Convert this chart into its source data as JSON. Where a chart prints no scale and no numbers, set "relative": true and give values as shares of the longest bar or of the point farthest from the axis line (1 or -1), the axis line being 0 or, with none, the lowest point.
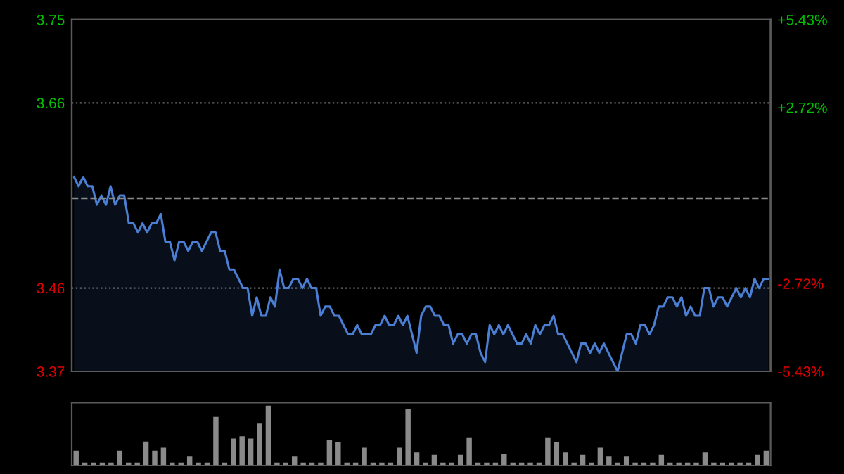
{
  "chart_data": [
    {
      "type": "area",
      "color": "#4a7fd4",
      "ylim": [
        3.37,
        3.75
      ],
      "yticks": [
        3.37,
        3.46,
        3.66,
        3.75
      ],
      "y2lim": [
        -5.43,
        5.43
      ],
      "y2ticks": [
        {
          "value": -5.43,
          "label": "-5.43%"
        },
        {
          "value": -2.72,
          "label": "-2.72%"
        },
        {
          "value": 2.72,
          "label": "+2.72%"
        },
        {
          "value": 5.43,
          "label": "+5.43%"
        }
      ],
      "grid": "y",
      "ref_lines": [
        {
          "axis": "y",
          "value": 3.557,
          "label": null,
          "line_style": "dashed"
        }
      ],
      "categories": [
        null,
        null,
        null,
        null,
        null,
        null,
        null,
        null,
        null,
        null,
        null,
        null,
        null,
        null,
        null,
        null,
        null,
        null,
        null,
        null,
        null,
        null,
        null,
        null,
        null,
        null,
        null,
        null,
        null,
        null,
        null,
        null,
        null,
        null,
        null,
        null,
        null,
        null,
        null,
        null,
        null,
        null,
        null,
        null,
        null,
        null,
        null,
        null,
        null,
        null,
        null,
        null,
        null,
        null,
        null,
        null,
        null,
        null,
        null,
        null,
        null,
        null,
        null,
        null,
        null,
        null,
        null,
        null,
        null,
        null,
        null,
        null,
        null,
        null,
        null,
        null,
        null,
        null,
        null,
        null,
        null,
        null,
        null,
        null,
        null,
        null,
        null,
        null,
        null,
        null,
        null,
        null,
        null,
        null,
        null,
        null,
        null,
        null,
        null,
        null,
        null,
        null,
        null,
        null,
        null,
        null,
        null,
        null,
        null,
        null,
        null,
        null,
        null,
        null,
        null,
        null,
        null,
        null,
        null,
        null,
        null,
        null,
        null,
        null,
        null,
        null,
        null,
        null,
        null,
        null,
        null,
        null,
        null,
        null,
        null,
        null,
        null,
        null,
        null,
        null,
        null,
        null,
        null,
        null,
        null,
        null,
        null,
        null,
        null,
        null,
        null,
        null,
        null
      ],
      "values": [
        3.58,
        3.57,
        3.58,
        3.57,
        3.57,
        3.55,
        3.56,
        3.55,
        3.57,
        3.55,
        3.56,
        3.56,
        3.53,
        3.53,
        3.52,
        3.53,
        3.52,
        3.53,
        3.53,
        3.54,
        3.51,
        3.51,
        3.49,
        3.51,
        3.51,
        3.5,
        3.51,
        3.51,
        3.5,
        3.51,
        3.52,
        3.52,
        3.5,
        3.5,
        3.48,
        3.48,
        3.47,
        3.46,
        3.46,
        3.43,
        3.45,
        3.43,
        3.43,
        3.45,
        3.44,
        3.48,
        3.46,
        3.46,
        3.47,
        3.47,
        3.46,
        3.47,
        3.46,
        3.46,
        3.43,
        3.44,
        3.44,
        3.43,
        3.43,
        3.42,
        3.41,
        3.41,
        3.42,
        3.41,
        3.41,
        3.41,
        3.42,
        3.42,
        3.43,
        3.42,
        3.42,
        3.43,
        3.42,
        3.43,
        3.41,
        3.39,
        3.43,
        3.44,
        3.44,
        3.43,
        3.43,
        3.42,
        3.42,
        3.4,
        3.41,
        3.41,
        3.4,
        3.41,
        3.41,
        3.39,
        3.38,
        3.42,
        3.41,
        3.42,
        3.41,
        3.42,
        3.41,
        3.4,
        3.4,
        3.41,
        3.4,
        3.42,
        3.41,
        3.42,
        3.42,
        3.43,
        3.41,
        3.41,
        3.4,
        3.39,
        3.38,
        3.4,
        3.4,
        3.39,
        3.4,
        3.39,
        3.4,
        3.39,
        3.38,
        3.37,
        3.39,
        3.41,
        3.41,
        3.4,
        3.42,
        3.42,
        3.41,
        3.42,
        3.44,
        3.44,
        3.45,
        3.45,
        3.44,
        3.45,
        3.43,
        3.44,
        3.43,
        3.43,
        3.46,
        3.46,
        3.44,
        3.45,
        3.45,
        3.44,
        3.45,
        3.46,
        3.45,
        3.46,
        3.45,
        3.47,
        3.46,
        3.47,
        3.47
      ]
    },
    {
      "type": "bar",
      "relative": true,
      "color": "#8a8a8a",
      "categories": [
        null,
        null,
        null,
        null,
        null,
        null,
        null,
        null,
        null,
        null,
        null,
        null,
        null,
        null,
        null,
        null,
        null,
        null,
        null,
        null,
        null,
        null,
        null,
        null,
        null,
        null,
        null,
        null,
        null,
        null,
        null,
        null,
        null,
        null,
        null,
        null,
        null,
        null,
        null,
        null,
        null,
        null,
        null,
        null,
        null,
        null,
        null,
        null,
        null,
        null,
        null,
        null,
        null,
        null,
        null,
        null,
        null,
        null,
        null,
        null,
        null,
        null,
        null,
        null,
        null,
        null,
        null,
        null,
        null,
        null,
        null,
        null,
        null,
        null,
        null,
        null,
        null,
        null,
        null,
        null
      ],
      "values": [
        0.25,
        0.05,
        0.05,
        0.05,
        0.05,
        0.25,
        0.05,
        0.05,
        0.4,
        0.25,
        0.3,
        0.05,
        0.05,
        0.15,
        0.05,
        0.05,
        0.81,
        0.05,
        0.45,
        0.49,
        0.45,
        0.7,
        1.0,
        0.05,
        0.05,
        0.15,
        0.05,
        0.05,
        0.05,
        0.43,
        0.39,
        0.05,
        0.05,
        0.3,
        0.05,
        0.05,
        0.05,
        0.3,
        0.94,
        0.22,
        0.05,
        0.18,
        0.05,
        0.05,
        0.18,
        0.46,
        0.05,
        0.05,
        0.05,
        0.2,
        0.05,
        0.05,
        0.05,
        0.05,
        0.46,
        0.39,
        0.22,
        0.05,
        0.18,
        0.05,
        0.3,
        0.15,
        0.05,
        0.15,
        0.05,
        0.05,
        0.05,
        0.18,
        0.05,
        0.05,
        0.05,
        0.05,
        0.22,
        0.05,
        0.05,
        0.05,
        0.05,
        0.05,
        0.18,
        0.25
      ]
    }
  ]
}
